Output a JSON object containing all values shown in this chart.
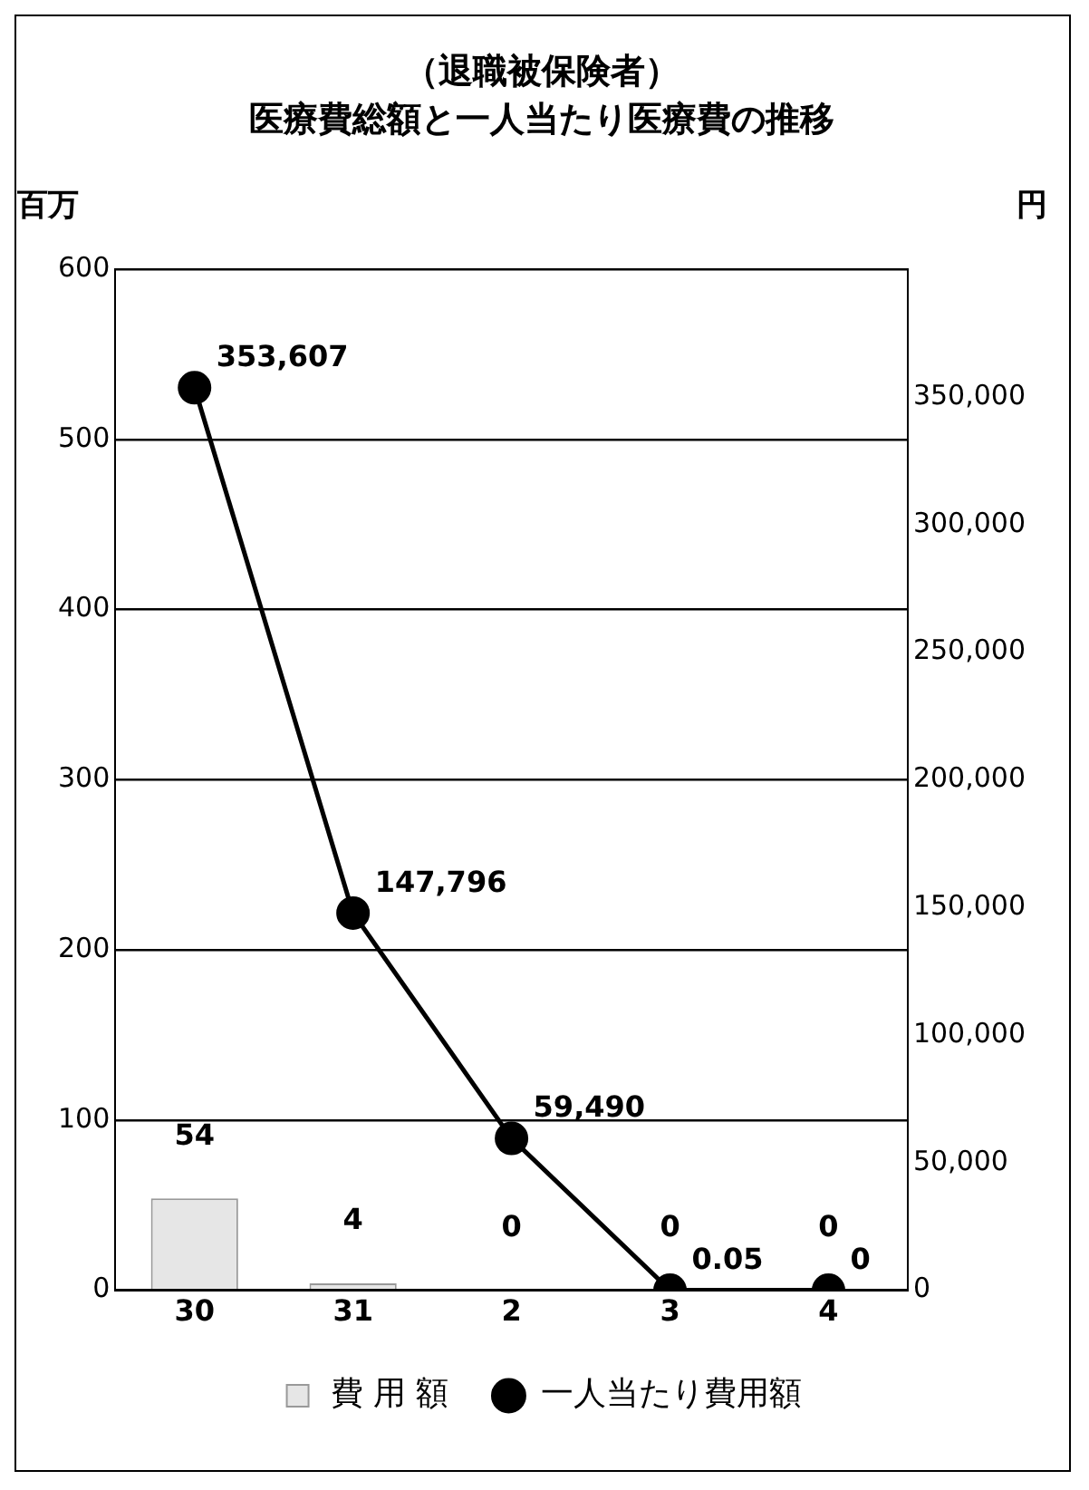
{
  "chart_data": {
    "type": "bar",
    "title": "（退職被保険者）",
    "subtitle": "医療費総額と一人当たり医療費の推移",
    "ylabel": "百万",
    "y2label": "円",
    "categories": [
      "30",
      "31",
      "2",
      "3",
      "4"
    ],
    "series": [
      {
        "name": "費 用 額",
        "color": "#e6e6e6",
        "values": [
          54,
          4,
          0,
          0,
          0
        ],
        "value_labels": [
          "54",
          "4",
          "0",
          "0",
          "0"
        ]
      },
      {
        "name": "一人当たり費用額",
        "type": "line",
        "axis": "y2",
        "color": "#000000",
        "values": [
          353607,
          147796,
          59490,
          0.05,
          0
        ],
        "value_labels": [
          "353,607",
          "147,796",
          "59,490",
          "0.05",
          "0"
        ]
      }
    ],
    "ylim": [
      0,
      600
    ],
    "yticks": [
      0,
      100,
      200,
      300,
      400,
      500,
      600
    ],
    "y2lim": [
      0,
      400000
    ],
    "y2ticks": [
      0,
      {
        "value": 50000,
        "label": "50,000"
      },
      {
        "value": 100000,
        "label": "100,000"
      },
      {
        "value": 150000,
        "label": "150,000"
      },
      {
        "value": 200000,
        "label": "200,000"
      },
      {
        "value": 250000,
        "label": "250,000"
      },
      {
        "value": 300000,
        "label": "300,000"
      },
      {
        "value": 350000,
        "label": "350,000"
      }
    ],
    "grid": "y",
    "legend": "bottom",
    "marker": "circle",
    "line_style": "solid"
  }
}
